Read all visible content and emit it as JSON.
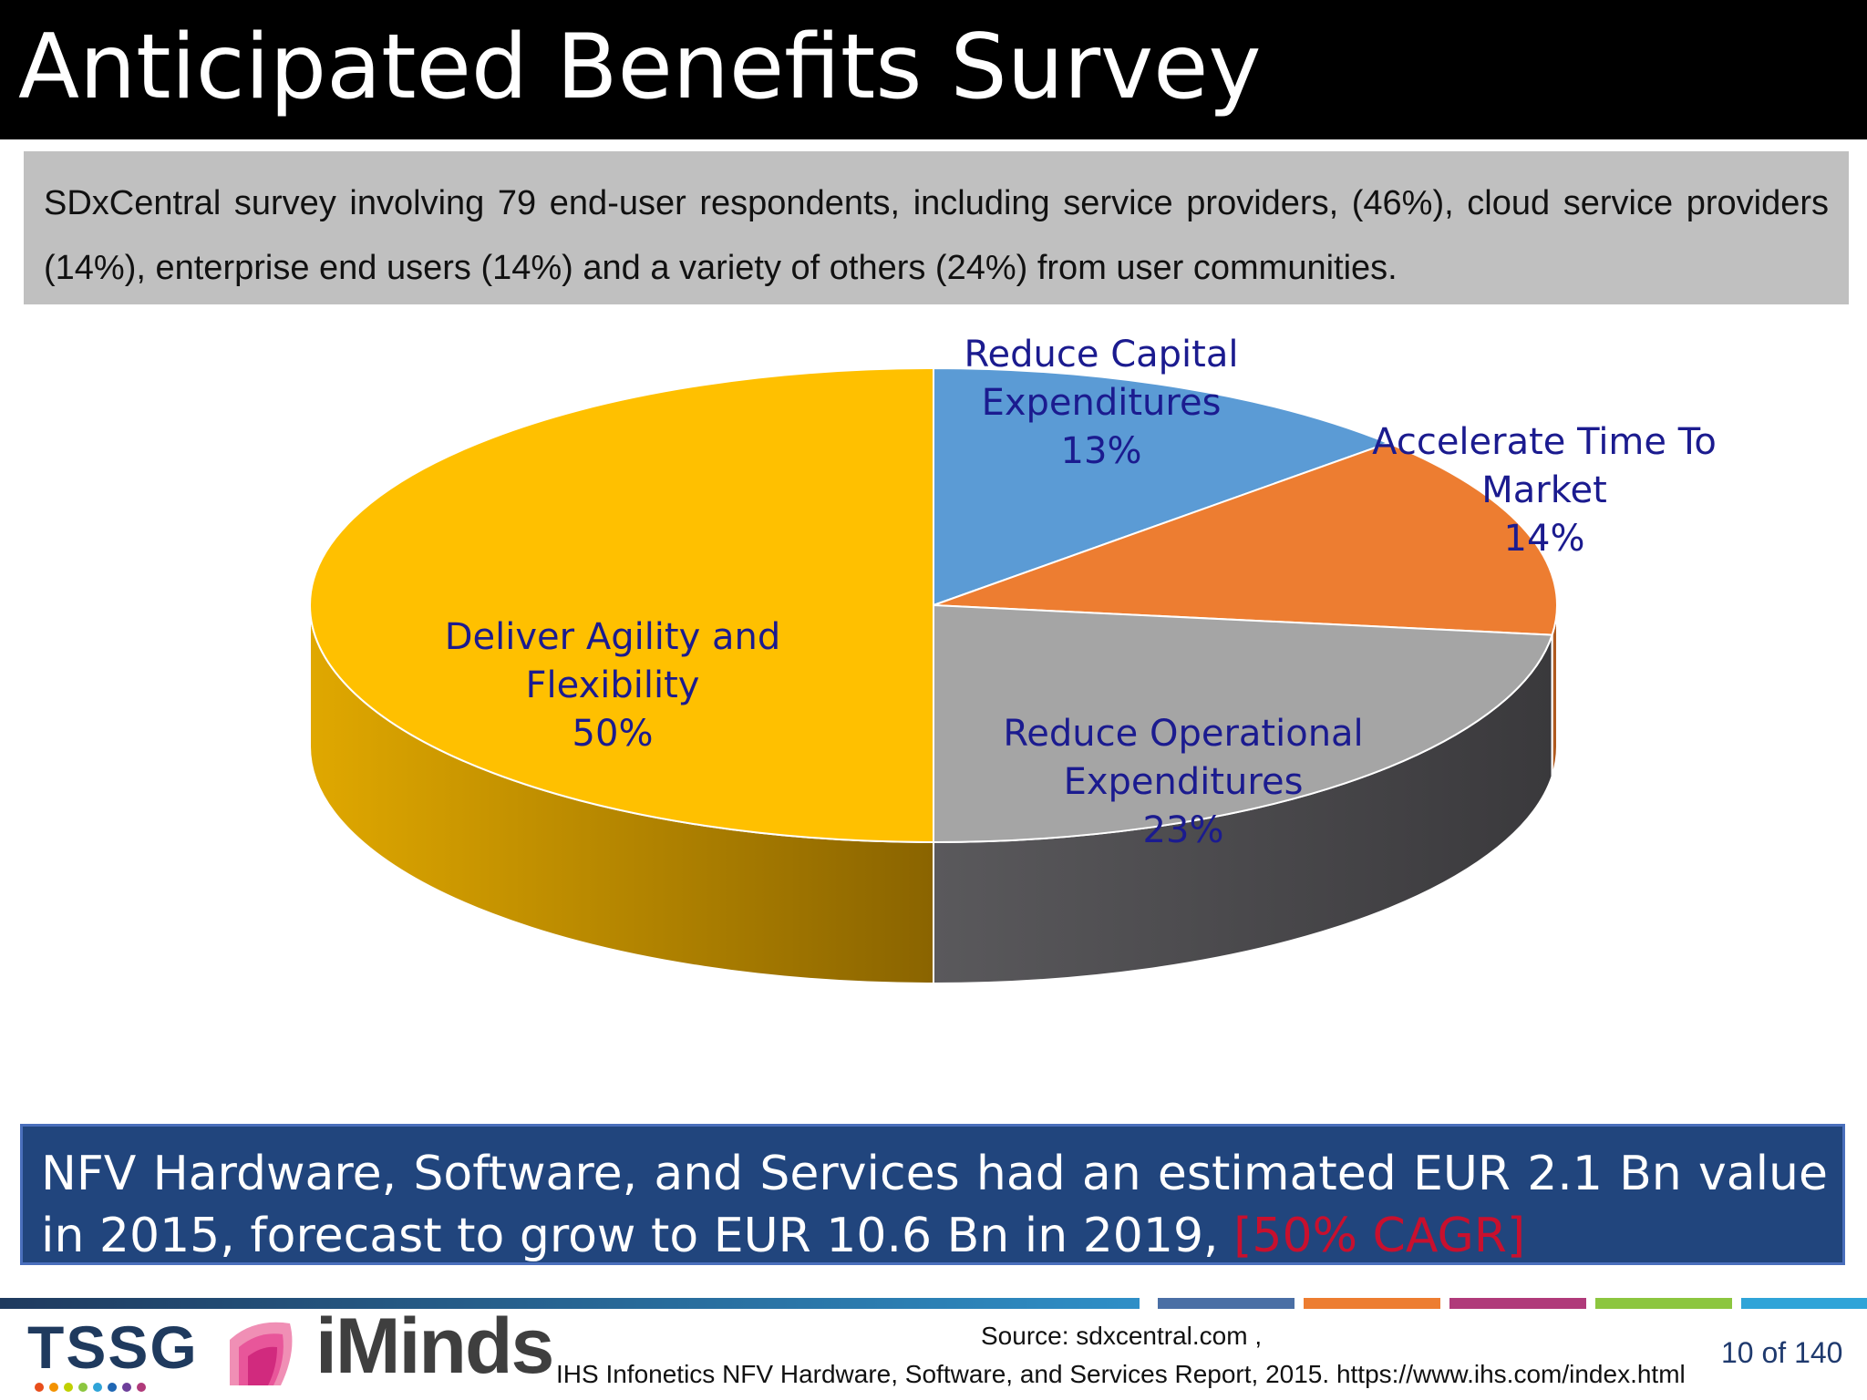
{
  "title": "Anticipated Benefits Survey",
  "intro": "SDxCentral survey involving 79 end-user respondents, including service providers, (46%), cloud service providers (14%), enterprise end users (14%) and a variety of others (24%) from user communities.",
  "chart_data": {
    "type": "pie",
    "style": "3d",
    "slices": [
      {
        "label_lines": [
          "Reduce Capital",
          "Expenditures"
        ],
        "value": 13,
        "value_label": "13%",
        "color": "#5b9bd5",
        "side_color": "#3d6ea0"
      },
      {
        "label_lines": [
          "Accelerate Time To",
          "Market"
        ],
        "value": 14,
        "value_label": "14%",
        "color": "#ed7d31",
        "side_color": "#b05a1f"
      },
      {
        "label_lines": [
          "Reduce Operational",
          "Expenditures"
        ],
        "value": 23,
        "value_label": "23%",
        "color": "#a5a5a5",
        "side_color": "#4a494c"
      },
      {
        "label_lines": [
          "Deliver Agility and",
          "Flexibility"
        ],
        "value": 50,
        "value_label": "50%",
        "color": "#ffc000",
        "side_color": "#c08a00"
      }
    ]
  },
  "banner": {
    "text": "NFV Hardware, Software, and Services had an estimated EUR 2.1 Bn value in 2015, forecast to grow to EUR 10.6 Bn in 2019, ",
    "highlight": "[50% CAGR]",
    "highlight_color": "#c8102e"
  },
  "footer": {
    "logo_left": "TSSG",
    "logo_right": "iMinds",
    "source_line1": "Source: sdxcentral.com ,",
    "source_line2": "IHS Infonetics NFV Hardware, Software, and Services Report, 2015. https://www.ihs.com/index.html",
    "page": "10 of 140"
  }
}
